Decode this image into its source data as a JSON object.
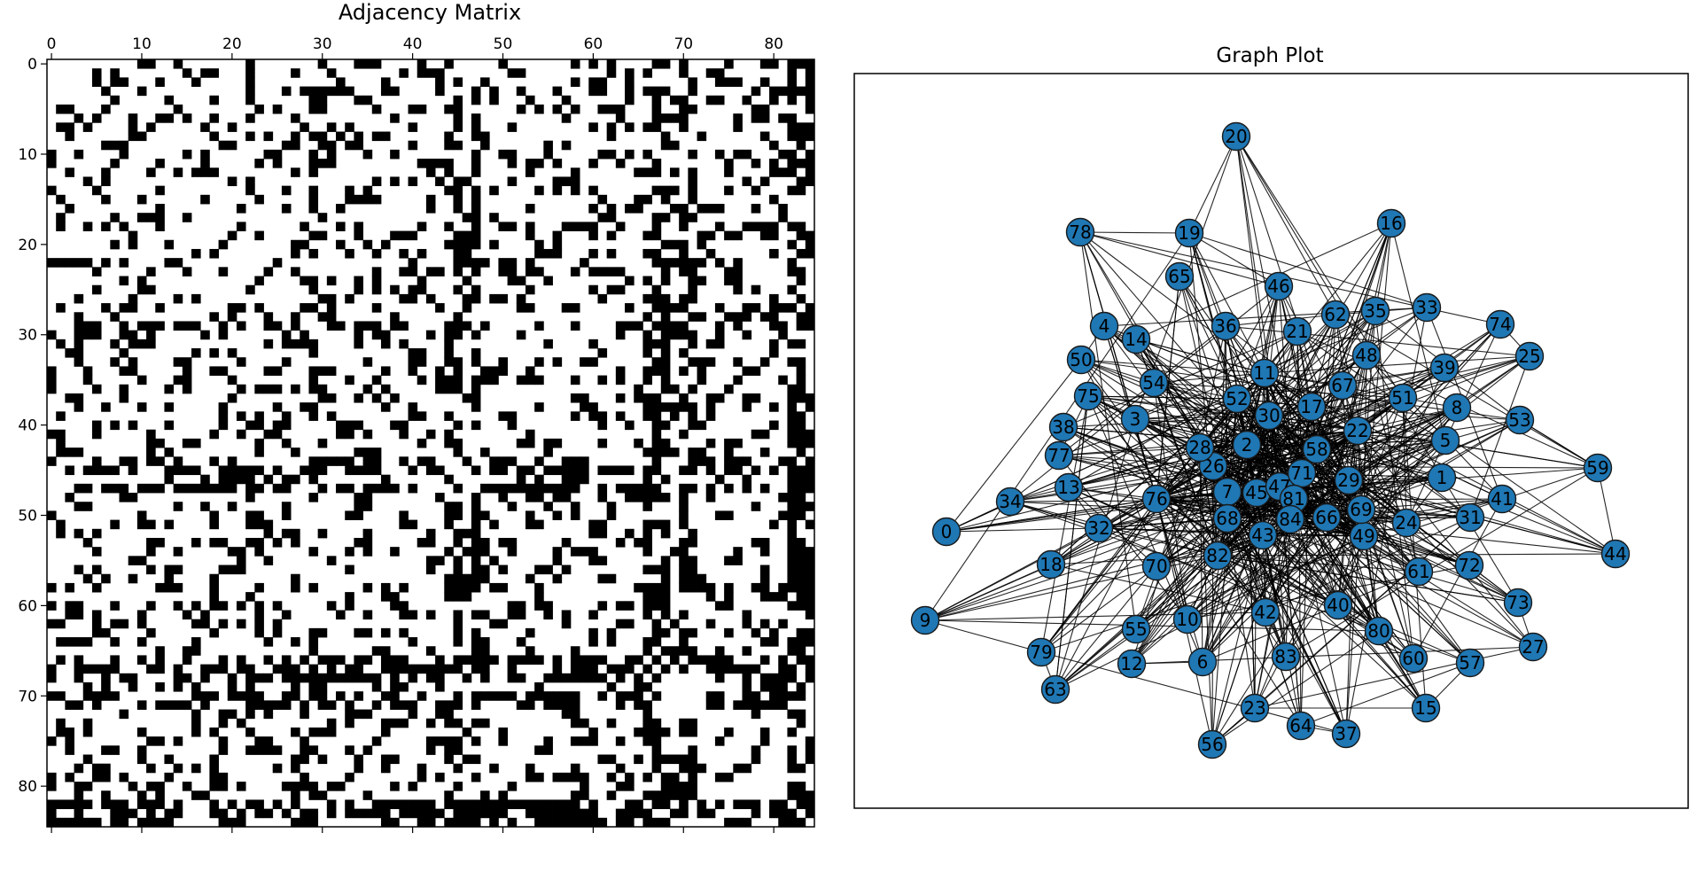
{
  "left_panel": {
    "title": "Adjacency Matrix",
    "size": 85,
    "x_ticks": [
      0,
      10,
      20,
      30,
      40,
      50,
      60,
      70,
      80
    ],
    "y_ticks": [
      0,
      10,
      20,
      30,
      40,
      50,
      60,
      70,
      80
    ],
    "fill_color": "#000000",
    "background_color": "#ffffff",
    "approx_density": 0.24,
    "dense_rows": [
      29,
      44,
      45,
      47,
      66,
      67,
      68,
      70,
      71,
      82,
      83,
      84
    ]
  },
  "right_panel": {
    "title": "Graph Plot",
    "node_color": "#1f77b4",
    "edge_color": "#000000",
    "node_labels": [
      "0",
      "1",
      "2",
      "3",
      "4",
      "5",
      "6",
      "7",
      "8",
      "9",
      "10",
      "11",
      "12",
      "13",
      "14",
      "15",
      "16",
      "17",
      "18",
      "19",
      "20",
      "21",
      "22",
      "23",
      "24",
      "25",
      "26",
      "27",
      "28",
      "29",
      "30",
      "31",
      "32",
      "33",
      "34",
      "35",
      "36",
      "37",
      "38",
      "39",
      "40",
      "41",
      "42",
      "43",
      "44",
      "45",
      "46",
      "47",
      "48",
      "49",
      "50",
      "51",
      "52",
      "53",
      "54",
      "55",
      "56",
      "57",
      "58",
      "59",
      "60",
      "61",
      "62",
      "63",
      "64",
      "65",
      "66",
      "67",
      "68",
      "69",
      "70",
      "71",
      "72",
      "73",
      "74",
      "75",
      "76",
      "77",
      "78",
      "79",
      "80",
      "81",
      "82",
      "83",
      "84"
    ]
  }
}
